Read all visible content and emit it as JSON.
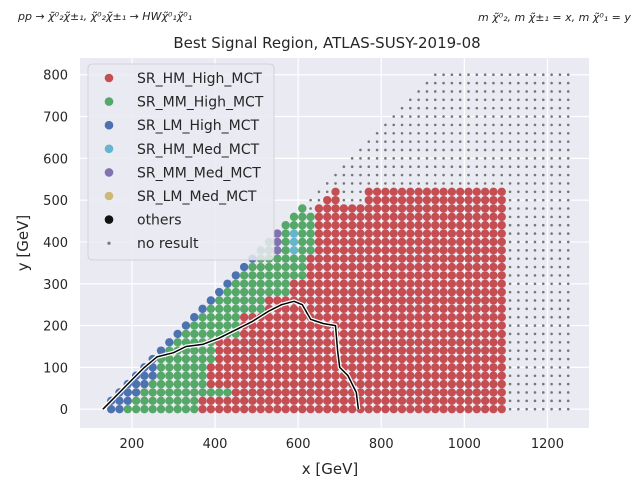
{
  "chart_data": {
    "type": "scatter",
    "title": "Best Signal Region, ATLAS-SUSY-2019-08",
    "process_label": "pp → χ̃⁰₂χ̃±₁, χ̃⁰₂χ̃±₁ → HWχ̃⁰₁χ̃⁰₁",
    "mass_label": "m χ̃⁰₂, m χ̃±₁ = x, m χ̃⁰₁ = y",
    "xlabel": "x [GeV]",
    "ylabel": "y [GeV]",
    "xlim": [
      75,
      1300
    ],
    "ylim": [
      -45,
      840
    ],
    "xticks": [
      200,
      400,
      600,
      800,
      1000,
      1200
    ],
    "yticks": [
      0,
      100,
      200,
      300,
      400,
      500,
      600,
      700,
      800
    ],
    "grid": true,
    "legend_position": "top-left",
    "series": [
      {
        "name": "SR_HM_High_MCT",
        "color": "#c44e52",
        "marker": "dot"
      },
      {
        "name": "SR_MM_High_MCT",
        "color": "#55a868",
        "marker": "dot"
      },
      {
        "name": "SR_LM_High_MCT",
        "color": "#4c72b0",
        "marker": "dot"
      },
      {
        "name": "SR_HM_Med_MCT",
        "color": "#64b5cd",
        "marker": "dot"
      },
      {
        "name": "SR_MM_Med_MCT",
        "color": "#8172b2",
        "marker": "dot"
      },
      {
        "name": "SR_LM_Med_MCT",
        "color": "#ccb974",
        "marker": "dot"
      },
      {
        "name": "others",
        "color": "#111111",
        "marker": "dot"
      },
      {
        "name": "no result",
        "color": "#777777",
        "marker": "small-dot"
      }
    ],
    "grid_points": {
      "x_start": 150,
      "x_end": 1100,
      "x_step": 20,
      "y_start": 0,
      "y_end": 520,
      "y_step": 20,
      "x_max_result_by_band": [
        [
          0,
          545
        ]
      ]
    },
    "regions": [
      {
        "series": "SR_HM_High_MCT",
        "x_min": 400,
        "y_band": [
          0,
          20
        ],
        "x_max": 1100
      },
      {
        "series": "SR_HM_High_MCT",
        "x_min": 600,
        "y_band": [
          400,
          500
        ],
        "x_max": 1100
      },
      {
        "series": "SR_MM_High_MCT",
        "x_min": 220,
        "x_max": 480,
        "y_band": [
          0,
          300
        ]
      },
      {
        "series": "SR_LM_High_MCT",
        "x_min": 160,
        "x_max": 260,
        "y_band": [
          0,
          160
        ]
      }
    ],
    "exclusion_contour": [
      [
        130,
        0
      ],
      [
        150,
        20
      ],
      [
        170,
        40
      ],
      [
        200,
        70
      ],
      [
        230,
        100
      ],
      [
        260,
        125
      ],
      [
        300,
        135
      ],
      [
        330,
        150
      ],
      [
        370,
        155
      ],
      [
        410,
        170
      ],
      [
        450,
        190
      ],
      [
        490,
        210
      ],
      [
        530,
        235
      ],
      [
        560,
        250
      ],
      [
        590,
        258
      ],
      [
        610,
        250
      ],
      [
        630,
        215
      ],
      [
        660,
        205
      ],
      [
        690,
        200
      ],
      [
        695,
        140
      ],
      [
        700,
        100
      ],
      [
        720,
        80
      ],
      [
        740,
        40
      ],
      [
        745,
        0
      ]
    ],
    "others_points": [
      [
        560,
        440
      ]
    ]
  }
}
